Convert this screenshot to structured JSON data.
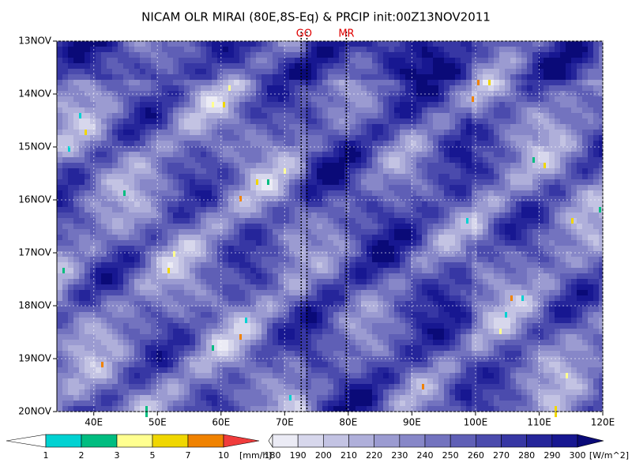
{
  "chart_data": {
    "type": "hovmoller",
    "title": "NICAM OLR MIRAI (80E,8S-Eq) & PRCIP init:00Z13NOV2011",
    "xlim": [
      34.2,
      120
    ],
    "xticks": [
      {
        "value": 40,
        "label": "40E"
      },
      {
        "value": 50,
        "label": "50E"
      },
      {
        "value": 60,
        "label": "60E"
      },
      {
        "value": 70,
        "label": "70E"
      },
      {
        "value": 80,
        "label": "80E"
      },
      {
        "value": 90,
        "label": "90E"
      },
      {
        "value": 100,
        "label": "100E"
      },
      {
        "value": 110,
        "label": "110E"
      },
      {
        "value": 120,
        "label": "120E"
      }
    ],
    "ylim": [
      0,
      7
    ],
    "y_inverted": true,
    "yticks": [
      {
        "value": 0,
        "label": "13NOV"
      },
      {
        "value": 1,
        "label": "14NOV"
      },
      {
        "value": 2,
        "label": "15NOV"
      },
      {
        "value": 3,
        "label": "16NOV"
      },
      {
        "value": 4,
        "label": "17NOV"
      },
      {
        "value": 5,
        "label": "18NOV"
      },
      {
        "value": 6,
        "label": "19NOV"
      },
      {
        "value": 7,
        "label": "20NOV"
      }
    ],
    "grid": true,
    "markers": [
      {
        "label": "GO",
        "values": [
          72.6,
          73.5
        ],
        "color": "#000000"
      },
      {
        "label": "MR",
        "values": [
          79.7
        ],
        "color": "#000000"
      }
    ],
    "colorbars": [
      {
        "name": "precipitation",
        "levels": [
          1,
          2,
          3,
          5,
          7,
          10
        ],
        "unit": "[mm/h]",
        "colors": [
          "#ffffff",
          "#00d2d2",
          "#00bd80",
          "#ffff90",
          "#f0d700",
          "#f08200",
          "#f03c3c"
        ]
      },
      {
        "name": "olr",
        "levels": [
          180,
          190,
          200,
          210,
          220,
          230,
          240,
          250,
          260,
          270,
          280,
          290,
          300
        ],
        "unit": "[W/m^2]",
        "colors": [
          "#ffffff",
          "#ebebf5",
          "#d7d7ec",
          "#c3c3e3",
          "#afafda",
          "#9b9bd1",
          "#8787c8",
          "#7373bf",
          "#5f5fb6",
          "#4b4bad",
          "#3737a4",
          "#25259a",
          "#171791",
          "#0a0a78"
        ]
      }
    ]
  }
}
